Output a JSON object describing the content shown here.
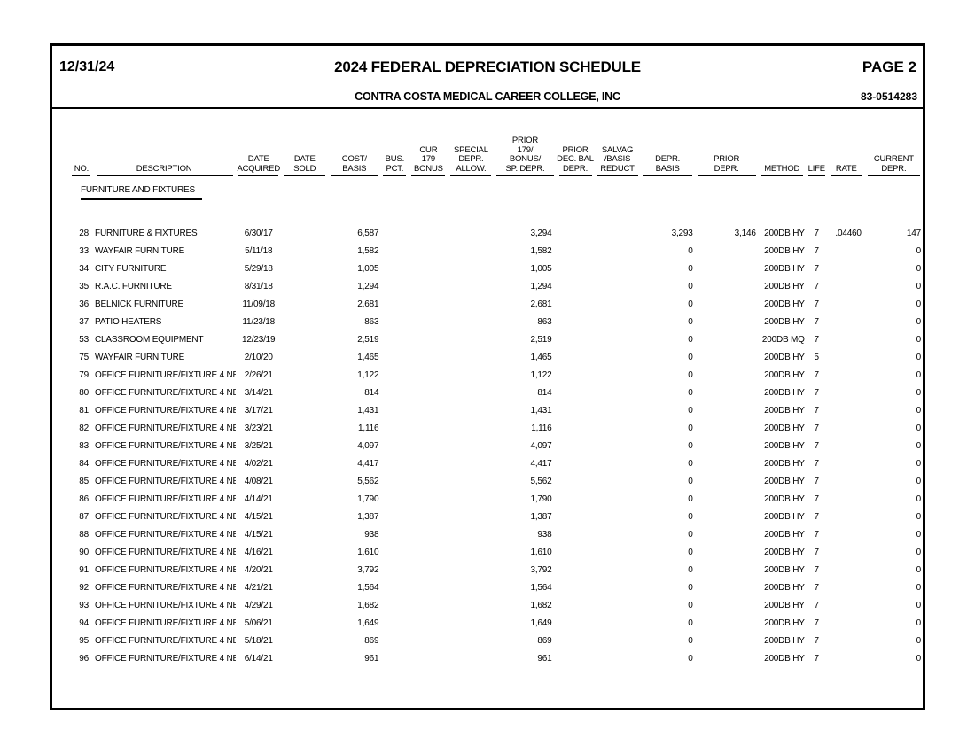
{
  "page": {
    "report_date": "12/31/24",
    "title": "2024 FEDERAL DEPRECIATION SCHEDULE",
    "page_label": "PAGE 2",
    "company": "CONTRA COSTA MEDICAL CAREER COLLEGE, INC",
    "ein": "83-0514283"
  },
  "table": {
    "headers": [
      "NO.",
      "DESCRIPTION",
      "DATE\nACQUIRED",
      "DATE\nSOLD",
      "COST/\nBASIS",
      "BUS.\nPCT.",
      "CUR\n179\nBONUS",
      "SPECIAL\nDEPR.\nALLOW.",
      "PRIOR\n179/\nBONUS/\nSP. DEPR.",
      "PRIOR\nDEC. BAL\nDEPR.",
      "SALVAG\n/BASIS\nREDUCT",
      "DEPR.\nBASIS",
      "PRIOR\nDEPR.",
      "METHOD",
      "LIFE",
      "RATE",
      "CURRENT\nDEPR."
    ],
    "column_keys": [
      "no",
      "description",
      "date-acquired",
      "date-sold",
      "cost-basis",
      "bus-pct",
      "cur-179-bonus",
      "special-depr-allow",
      "prior-179-bonus-sp-depr",
      "prior-dec-bal-depr",
      "salvag-basis-reduct",
      "depr-basis",
      "prior-depr",
      "method",
      "life",
      "rate",
      "current-depr"
    ],
    "section": "FURNITURE AND FIXTURES",
    "rows": [
      [
        "28",
        "FURNITURE & FIXTURES",
        "6/30/17",
        "",
        "6,587",
        "",
        "",
        "",
        "3,294",
        "",
        "",
        "3,293",
        "3,146",
        "200DB HY",
        "7",
        ".04460",
        "147"
      ],
      [
        "33",
        "WAYFAIR FURNITURE",
        "5/11/18",
        "",
        "1,582",
        "",
        "",
        "",
        "1,582",
        "",
        "",
        "0",
        "",
        "200DB HY",
        "7",
        "",
        "0"
      ],
      [
        "34",
        "CITY FURNITURE",
        "5/29/18",
        "",
        "1,005",
        "",
        "",
        "",
        "1,005",
        "",
        "",
        "0",
        "",
        "200DB HY",
        "7",
        "",
        "0"
      ],
      [
        "35",
        "R.A.C. FURNITURE",
        "8/31/18",
        "",
        "1,294",
        "",
        "",
        "",
        "1,294",
        "",
        "",
        "0",
        "",
        "200DB HY",
        "7",
        "",
        "0"
      ],
      [
        "36",
        "BELNICK FURNITURE",
        "11/09/18",
        "",
        "2,681",
        "",
        "",
        "",
        "2,681",
        "",
        "",
        "0",
        "",
        "200DB HY",
        "7",
        "",
        "0"
      ],
      [
        "37",
        "PATIO HEATERS",
        "11/23/18",
        "",
        "863",
        "",
        "",
        "",
        "863",
        "",
        "",
        "0",
        "",
        "200DB HY",
        "7",
        "",
        "0"
      ],
      [
        "53",
        "CLASSROOM EQUIPMENT",
        "12/23/19",
        "",
        "2,519",
        "",
        "",
        "",
        "2,519",
        "",
        "",
        "0",
        "",
        "200DB MQ",
        "7",
        "",
        "0"
      ],
      [
        "75",
        "WAYFAIR FURNITURE",
        "2/10/20",
        "",
        "1,465",
        "",
        "",
        "",
        "1,465",
        "",
        "",
        "0",
        "",
        "200DB HY",
        "5",
        "",
        "0"
      ],
      [
        "79",
        "OFFICE FURNITURE/FIXTURE 4 NE",
        "2/26/21",
        "",
        "1,122",
        "",
        "",
        "",
        "1,122",
        "",
        "",
        "0",
        "",
        "200DB HY",
        "7",
        "",
        "0"
      ],
      [
        "80",
        "OFFICE FURNITURE/FIXTURE 4 NE",
        "3/14/21",
        "",
        "814",
        "",
        "",
        "",
        "814",
        "",
        "",
        "0",
        "",
        "200DB HY",
        "7",
        "",
        "0"
      ],
      [
        "81",
        "OFFICE FURNITURE/FIXTURE 4 NE",
        "3/17/21",
        "",
        "1,431",
        "",
        "",
        "",
        "1,431",
        "",
        "",
        "0",
        "",
        "200DB HY",
        "7",
        "",
        "0"
      ],
      [
        "82",
        "OFFICE FURNITURE/FIXTURE 4 NE",
        "3/23/21",
        "",
        "1,116",
        "",
        "",
        "",
        "1,116",
        "",
        "",
        "0",
        "",
        "200DB HY",
        "7",
        "",
        "0"
      ],
      [
        "83",
        "OFFICE FURNITURE/FIXTURE 4 NE",
        "3/25/21",
        "",
        "4,097",
        "",
        "",
        "",
        "4,097",
        "",
        "",
        "0",
        "",
        "200DB HY",
        "7",
        "",
        "0"
      ],
      [
        "84",
        "OFFICE FURNITURE/FIXTURE 4 NE",
        "4/02/21",
        "",
        "4,417",
        "",
        "",
        "",
        "4,417",
        "",
        "",
        "0",
        "",
        "200DB HY",
        "7",
        "",
        "0"
      ],
      [
        "85",
        "OFFICE FURNITURE/FIXTURE 4 NE",
        "4/08/21",
        "",
        "5,562",
        "",
        "",
        "",
        "5,562",
        "",
        "",
        "0",
        "",
        "200DB HY",
        "7",
        "",
        "0"
      ],
      [
        "86",
        "OFFICE FURNITURE/FIXTURE 4 NE",
        "4/14/21",
        "",
        "1,790",
        "",
        "",
        "",
        "1,790",
        "",
        "",
        "0",
        "",
        "200DB HY",
        "7",
        "",
        "0"
      ],
      [
        "87",
        "OFFICE FURNITURE/FIXTURE 4 NE",
        "4/15/21",
        "",
        "1,387",
        "",
        "",
        "",
        "1,387",
        "",
        "",
        "0",
        "",
        "200DB HY",
        "7",
        "",
        "0"
      ],
      [
        "88",
        "OFFICE FURNITURE/FIXTURE 4 NE",
        "4/15/21",
        "",
        "938",
        "",
        "",
        "",
        "938",
        "",
        "",
        "0",
        "",
        "200DB HY",
        "7",
        "",
        "0"
      ],
      [
        "90",
        "OFFICE FURNITURE/FIXTURE 4 NE",
        "4/16/21",
        "",
        "1,610",
        "",
        "",
        "",
        "1,610",
        "",
        "",
        "0",
        "",
        "200DB HY",
        "7",
        "",
        "0"
      ],
      [
        "91",
        "OFFICE FURNITURE/FIXTURE 4 NE",
        "4/20/21",
        "",
        "3,792",
        "",
        "",
        "",
        "3,792",
        "",
        "",
        "0",
        "",
        "200DB HY",
        "7",
        "",
        "0"
      ],
      [
        "92",
        "OFFICE FURNITURE/FIXTURE 4 NE",
        "4/21/21",
        "",
        "1,564",
        "",
        "",
        "",
        "1,564",
        "",
        "",
        "0",
        "",
        "200DB HY",
        "7",
        "",
        "0"
      ],
      [
        "93",
        "OFFICE FURNITURE/FIXTURE 4 NE",
        "4/29/21",
        "",
        "1,682",
        "",
        "",
        "",
        "1,682",
        "",
        "",
        "0",
        "",
        "200DB HY",
        "7",
        "",
        "0"
      ],
      [
        "94",
        "OFFICE FURNITURE/FIXTURE 4 NE",
        "5/06/21",
        "",
        "1,649",
        "",
        "",
        "",
        "1,649",
        "",
        "",
        "0",
        "",
        "200DB HY",
        "7",
        "",
        "0"
      ],
      [
        "95",
        "OFFICE FURNITURE/FIXTURE 4 NE",
        "5/18/21",
        "",
        "869",
        "",
        "",
        "",
        "869",
        "",
        "",
        "0",
        "",
        "200DB HY",
        "7",
        "",
        "0"
      ],
      [
        "96",
        "OFFICE FURNITURE/FIXTURE 4 NE",
        "6/14/21",
        "",
        "961",
        "",
        "",
        "",
        "961",
        "",
        "",
        "0",
        "",
        "200DB HY",
        "7",
        "",
        "0"
      ]
    ]
  }
}
